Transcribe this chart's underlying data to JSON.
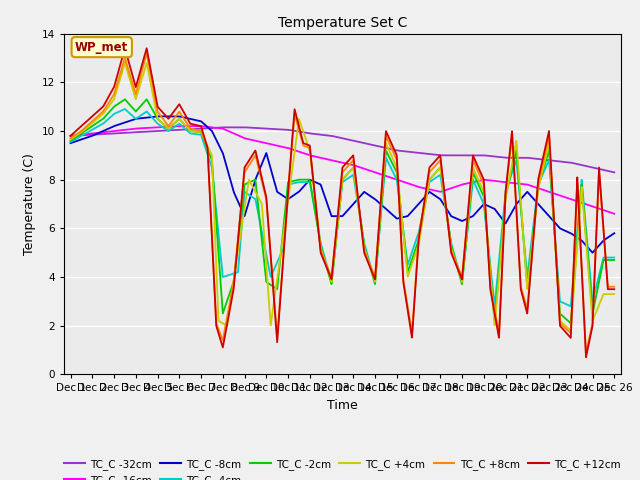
{
  "title": "Temperature Set C",
  "xlabel": "Time",
  "ylabel": "Temperature (C)",
  "ylim": [
    0,
    14
  ],
  "background_color": "#ebebeb",
  "wp_met_label": "WP_met",
  "series_colors": {
    "TC_C -32cm": "#9933cc",
    "TC_C -16cm": "#ff00ff",
    "TC_C -8cm": "#0000cc",
    "TC_C -4cm": "#00cccc",
    "TC_C -2cm": "#00cc00",
    "TC_C +4cm": "#cccc00",
    "TC_C +8cm": "#ff8800",
    "TC_C +12cm": "#cc0000"
  },
  "xtick_labels": [
    "Dec 1",
    "Dec 12",
    "Dec 13",
    "Dec 14",
    "Dec 15",
    "Dec 16",
    "Dec 17",
    "Dec 18",
    "Dec 19",
    "Dec 20",
    "Dec 21",
    "Dec 22",
    "Dec 23",
    "Dec 24",
    "Dec 25",
    "Dec 26"
  ],
  "yticks": [
    0,
    2,
    4,
    6,
    8,
    10,
    12,
    14
  ],
  "figsize": [
    6.4,
    4.8
  ],
  "dpi": 100
}
